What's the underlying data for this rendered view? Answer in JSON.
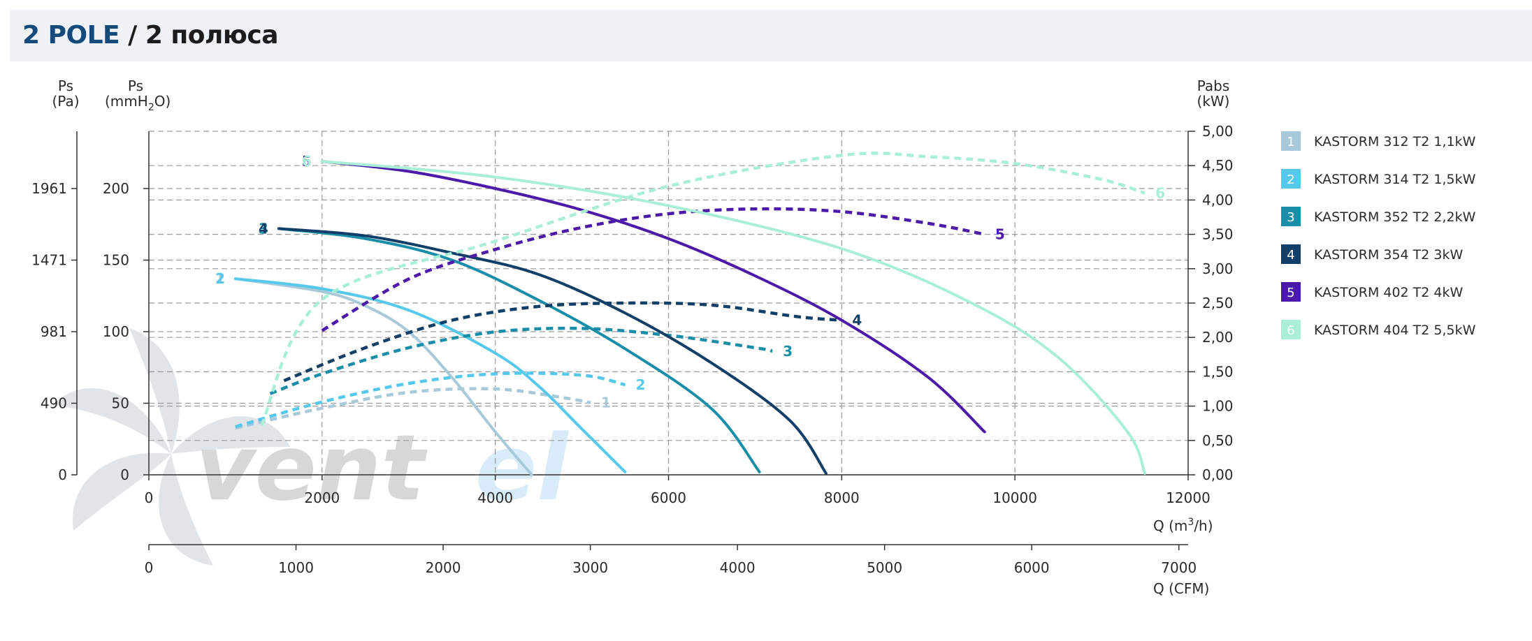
{
  "header": {
    "title_main": "2 POLE",
    "title_sep": " / ",
    "title_sub": "2 полюса"
  },
  "watermark": {
    "text_a": "vent",
    "text_b": "el"
  },
  "colors": {
    "s1": "#a7c9da",
    "s2": "#55c8ec",
    "s3": "#1a8ea8",
    "s4": "#123f68",
    "s5": "#4b1aa8",
    "s6": "#a9efd6",
    "grid": "#9a9a9a",
    "axis": "#333333"
  },
  "chart_data": {
    "type": "line",
    "axes": {
      "ps_pa": {
        "label_1": "Ps",
        "label_2": "(Pa)",
        "ticks": [
          "1961",
          "1471",
          "981",
          "490",
          "0"
        ],
        "tick_mm": [
          200,
          150,
          100,
          50,
          0
        ]
      },
      "ps_mm": {
        "label_1": "Ps",
        "label_2a": "(mmH",
        "label_2sub": "2",
        "label_2b": "O)",
        "ticks": [
          "200",
          "150",
          "100",
          "50",
          "0"
        ],
        "range": [
          0,
          240
        ]
      },
      "pabs": {
        "label_1": "Pabs",
        "label_2": "(kW)",
        "ticks": [
          "5,00",
          "4,50",
          "4,00",
          "3,50",
          "3,00",
          "2,50",
          "2,00",
          "1,50",
          "1,00",
          "0,50",
          "0,00"
        ],
        "range": [
          0,
          5
        ]
      },
      "q_m3h": {
        "label_a": "Q (m",
        "label_sup": "3",
        "label_b": "/h)",
        "ticks": [
          "0",
          "2000",
          "4000",
          "6000",
          "8000",
          "10000",
          "12000"
        ],
        "range": [
          0,
          12000
        ]
      },
      "q_cfm": {
        "label": "Q (CFM)",
        "ticks": [
          "0",
          "1000",
          "2000",
          "3000",
          "4000",
          "5000",
          "6000",
          "7000"
        ],
        "range": [
          0,
          7000
        ]
      }
    },
    "series": [
      {
        "name": "KASTORM 312 T2 1,1kW",
        "num": "1",
        "color_key": "s1",
        "pressure": [
          [
            1000,
            137
          ],
          [
            2000,
            128
          ],
          [
            2500,
            118
          ],
          [
            3000,
            100
          ],
          [
            3500,
            68
          ],
          [
            4000,
            30
          ],
          [
            4420,
            0
          ]
        ],
        "power": [
          [
            1000,
            0.68
          ],
          [
            2000,
            0.97
          ],
          [
            3000,
            1.2
          ],
          [
            4000,
            1.25
          ],
          [
            4800,
            1.12
          ],
          [
            5100,
            1.05
          ]
        ]
      },
      {
        "name": "KASTORM 314 T2 1,5kW",
        "num": "2",
        "color_key": "s2",
        "pressure": [
          [
            1000,
            137
          ],
          [
            2000,
            130
          ],
          [
            3000,
            115
          ],
          [
            4000,
            85
          ],
          [
            4500,
            62
          ],
          [
            5000,
            32
          ],
          [
            5500,
            2
          ]
        ],
        "power": [
          [
            1000,
            0.7
          ],
          [
            2000,
            1.06
          ],
          [
            3000,
            1.33
          ],
          [
            4000,
            1.47
          ],
          [
            5000,
            1.45
          ],
          [
            5500,
            1.31
          ]
        ]
      },
      {
        "name": "KASTORM 352 T2 2,2kW",
        "num": "3",
        "color_key": "s3",
        "pressure": [
          [
            1500,
            172
          ],
          [
            2500,
            165
          ],
          [
            3500,
            150
          ],
          [
            4500,
            122
          ],
          [
            5500,
            88
          ],
          [
            6500,
            46
          ],
          [
            7050,
            2
          ]
        ],
        "power": [
          [
            1400,
            1.18
          ],
          [
            2000,
            1.47
          ],
          [
            3000,
            1.85
          ],
          [
            4000,
            2.08
          ],
          [
            5000,
            2.13
          ],
          [
            6000,
            2.03
          ],
          [
            7000,
            1.85
          ],
          [
            7200,
            1.8
          ]
        ]
      },
      {
        "name": "KASTORM 354 T2 3kW",
        "num": "4",
        "color_key": "s4",
        "pressure": [
          [
            1500,
            172
          ],
          [
            2500,
            167
          ],
          [
            3500,
            155
          ],
          [
            4500,
            140
          ],
          [
            5500,
            113
          ],
          [
            6500,
            78
          ],
          [
            7400,
            38
          ],
          [
            7820,
            1
          ]
        ],
        "power": [
          [
            1560,
            1.37
          ],
          [
            2500,
            1.85
          ],
          [
            3500,
            2.25
          ],
          [
            4500,
            2.45
          ],
          [
            5500,
            2.5
          ],
          [
            6500,
            2.47
          ],
          [
            7500,
            2.3
          ],
          [
            8000,
            2.25
          ]
        ]
      },
      {
        "name": "KASTORM 402 T2 4kW",
        "num": "5",
        "color_key": "s5",
        "pressure": [
          [
            2000,
            219
          ],
          [
            3000,
            212
          ],
          [
            4000,
            200
          ],
          [
            5000,
            185
          ],
          [
            6000,
            165
          ],
          [
            7000,
            139
          ],
          [
            8000,
            108
          ],
          [
            9000,
            68
          ],
          [
            9650,
            30
          ]
        ],
        "power": [
          [
            2000,
            2.1
          ],
          [
            3000,
            2.85
          ],
          [
            4000,
            3.28
          ],
          [
            5000,
            3.6
          ],
          [
            6000,
            3.8
          ],
          [
            7000,
            3.87
          ],
          [
            8000,
            3.83
          ],
          [
            9000,
            3.66
          ],
          [
            9650,
            3.5
          ]
        ]
      },
      {
        "name": "KASTORM 404 T2 5,5kW",
        "num": "6",
        "color_key": "s6",
        "pressure": [
          [
            2000,
            219
          ],
          [
            4000,
            208
          ],
          [
            6000,
            188
          ],
          [
            8000,
            158
          ],
          [
            9500,
            120
          ],
          [
            10500,
            82
          ],
          [
            11300,
            30
          ],
          [
            11500,
            1
          ]
        ],
        "power": [
          [
            1300,
            0.72
          ],
          [
            2000,
            2.55
          ],
          [
            4000,
            3.4
          ],
          [
            6000,
            4.2
          ],
          [
            8000,
            4.65
          ],
          [
            9000,
            4.63
          ],
          [
            10000,
            4.53
          ],
          [
            11000,
            4.3
          ],
          [
            11500,
            4.1
          ]
        ]
      }
    ],
    "grid": true,
    "legend_position": "right"
  }
}
